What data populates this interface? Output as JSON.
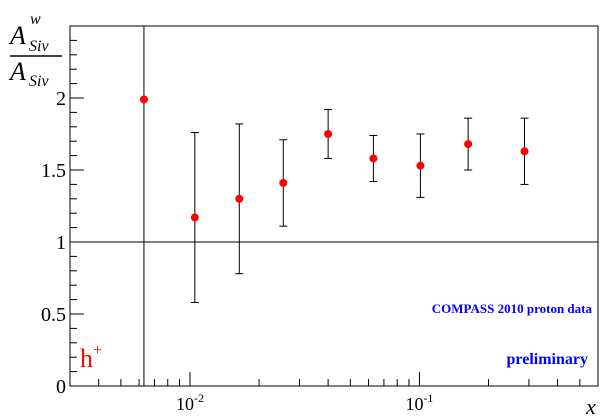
{
  "chart_data": {
    "type": "scatter",
    "ylabel": {
      "numerator": "A",
      "numerator_sup": "w",
      "numerator_sub": "Siv",
      "denominator": "A",
      "denominator_sub": "Siv"
    },
    "xlabel": "x",
    "x_scale": "log",
    "xlim": [
      0.003,
      0.6
    ],
    "ylim": [
      0,
      2.5
    ],
    "y_ticks": [
      0,
      0.5,
      1,
      1.5,
      2
    ],
    "y_tick_labels": [
      "0",
      "0.5",
      "1",
      "1.5",
      "2"
    ],
    "x_tick_labels": [
      {
        "value": 0.01,
        "base": "10",
        "exp": "-2"
      },
      {
        "value": 0.1,
        "base": "10",
        "exp": "-1"
      }
    ],
    "reference_line": {
      "y": 1
    },
    "series": [
      {
        "color": "#ff0000",
        "points": [
          {
            "x": 0.0063,
            "y": 1.99,
            "err_lo": 1.99,
            "err_hi": 0.51
          },
          {
            "x": 0.0105,
            "y": 1.17,
            "err_lo": 0.59,
            "err_hi": 0.59
          },
          {
            "x": 0.0164,
            "y": 1.3,
            "err_lo": 0.52,
            "err_hi": 0.52
          },
          {
            "x": 0.0255,
            "y": 1.41,
            "err_lo": 0.3,
            "err_hi": 0.3
          },
          {
            "x": 0.04,
            "y": 1.75,
            "err_lo": 0.17,
            "err_hi": 0.17
          },
          {
            "x": 0.063,
            "y": 1.58,
            "err_lo": 0.16,
            "err_hi": 0.16
          },
          {
            "x": 0.101,
            "y": 1.53,
            "err_lo": 0.22,
            "err_hi": 0.22
          },
          {
            "x": 0.163,
            "y": 1.68,
            "err_lo": 0.18,
            "err_hi": 0.18
          },
          {
            "x": 0.287,
            "y": 1.63,
            "err_lo": 0.23,
            "err_hi": 0.23
          }
        ]
      }
    ],
    "annotations": {
      "particle_label": "h",
      "particle_charge": "+",
      "dataset_label": "COMPASS 2010 proton data",
      "status_label": "preliminary"
    },
    "colors": {
      "markers": "#ff0000",
      "particle_label": "#ff0000",
      "annotation_text": "#0000ff",
      "axes": "#000000"
    }
  }
}
